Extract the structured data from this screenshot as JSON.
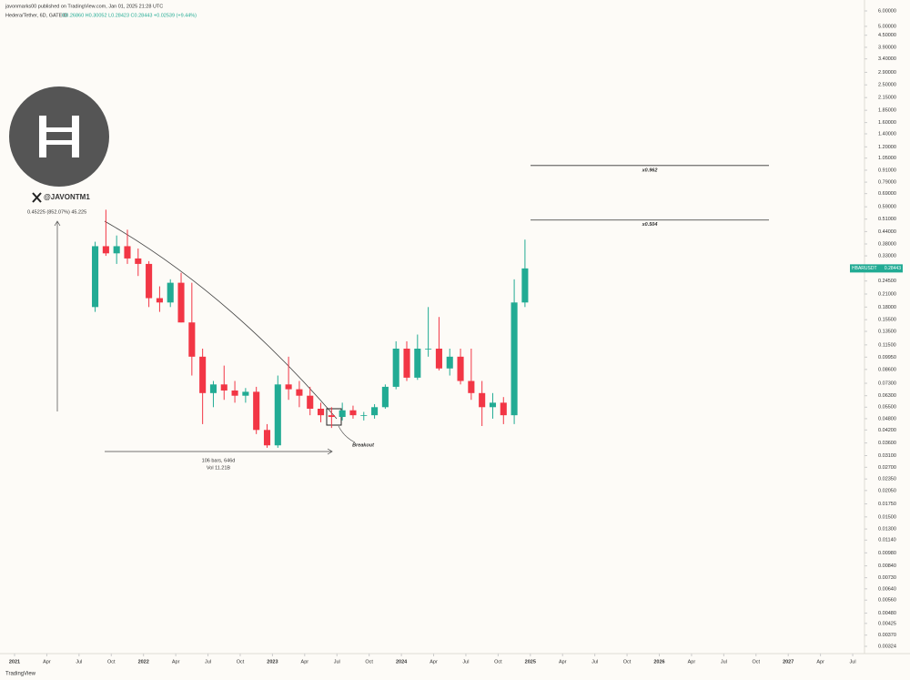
{
  "chart_data": {
    "type": "candlestick",
    "header": "javonmarks00 published on TradingView.com, Jan 01, 2025 21:28 UTC",
    "title": "Hedera/Tether, 6D, GATEIO",
    "ohlc_text": "O0.26860 H0.30052 L0.28423 C0.28443 +0.02539 (+9.44%)",
    "handle": "@JAVONTM1",
    "measure_label": "0.45225 (852.07%) 45.225",
    "range_label": "106 bars, 646d",
    "volume_label": "Vol 11.21B",
    "breakout_label": "Breakout",
    "footer": "TradingView",
    "price_tag": {
      "symbol": "HBARUSDT",
      "price": 0.28443
    },
    "levels": [
      {
        "value": 0.962,
        "label": "x0.962"
      },
      {
        "value": 0.504,
        "label": "x0.504"
      }
    ],
    "log_scale": true,
    "up_color": "#22ab94",
    "down_color": "#f23645",
    "x": [
      "2021-08",
      "2021-09",
      "2021-10",
      "2021-11",
      "2021-12",
      "2022-01",
      "2022-02",
      "2022-03",
      "2022-04",
      "2022-05",
      "2022-06",
      "2022-07",
      "2022-08",
      "2022-09",
      "2022-10",
      "2022-11",
      "2022-12",
      "2023-01",
      "2023-02",
      "2023-03",
      "2023-04",
      "2023-05",
      "2023-06",
      "2023-07",
      "2023-08",
      "2023-09",
      "2023-10",
      "2023-11",
      "2023-12",
      "2024-01",
      "2024-02",
      "2024-03",
      "2024-04",
      "2024-05",
      "2024-06",
      "2024-07",
      "2024-08",
      "2024-09",
      "2024-10",
      "2024-11",
      "2024-12"
    ],
    "open": [
      0.18,
      0.37,
      0.34,
      0.37,
      0.32,
      0.3,
      0.2,
      0.19,
      0.24,
      0.15,
      0.1,
      0.065,
      0.072,
      0.067,
      0.063,
      0.066,
      0.042,
      0.035,
      0.072,
      0.068,
      0.063,
      0.054,
      0.05,
      0.049,
      0.053,
      0.05,
      0.05,
      0.055,
      0.07,
      0.11,
      0.078,
      0.11,
      0.11,
      0.087,
      0.1,
      0.075,
      0.065,
      0.055,
      0.058,
      0.05,
      0.19
    ],
    "high": [
      0.39,
      0.57,
      0.42,
      0.45,
      0.36,
      0.31,
      0.23,
      0.25,
      0.27,
      0.24,
      0.11,
      0.075,
      0.09,
      0.075,
      0.069,
      0.07,
      0.045,
      0.08,
      0.1,
      0.075,
      0.07,
      0.058,
      0.055,
      0.058,
      0.056,
      0.052,
      0.057,
      0.072,
      0.12,
      0.12,
      0.13,
      0.18,
      0.16,
      0.11,
      0.11,
      0.11,
      0.075,
      0.065,
      0.062,
      0.25,
      0.4
    ],
    "low": [
      0.17,
      0.33,
      0.3,
      0.3,
      0.26,
      0.18,
      0.17,
      0.18,
      0.15,
      0.08,
      0.045,
      0.055,
      0.06,
      0.058,
      0.058,
      0.04,
      0.034,
      0.034,
      0.06,
      0.055,
      0.05,
      0.046,
      0.043,
      0.047,
      0.048,
      0.047,
      0.048,
      0.054,
      0.068,
      0.075,
      0.076,
      0.1,
      0.085,
      0.08,
      0.072,
      0.06,
      0.044,
      0.048,
      0.045,
      0.045,
      0.18
    ],
    "close": [
      0.37,
      0.34,
      0.37,
      0.32,
      0.3,
      0.2,
      0.19,
      0.24,
      0.15,
      0.1,
      0.065,
      0.072,
      0.067,
      0.063,
      0.066,
      0.042,
      0.035,
      0.072,
      0.068,
      0.063,
      0.054,
      0.05,
      0.049,
      0.053,
      0.05,
      0.05,
      0.055,
      0.07,
      0.11,
      0.078,
      0.11,
      0.11,
      0.087,
      0.1,
      0.075,
      0.065,
      0.055,
      0.058,
      0.05,
      0.19,
      0.28443
    ],
    "xlim": [
      "2021-01",
      "2027-09"
    ],
    "xticks": [
      {
        "value": "2021-01",
        "label": "2021"
      },
      {
        "value": "2021-04",
        "label": "Apr"
      },
      {
        "value": "2021-07",
        "label": "Jul"
      },
      {
        "value": "2021-10",
        "label": "Oct"
      },
      {
        "value": "2022-01",
        "label": "2022"
      },
      {
        "value": "2022-04",
        "label": "Apr"
      },
      {
        "value": "2022-07",
        "label": "Jul"
      },
      {
        "value": "2022-10",
        "label": "Oct"
      },
      {
        "value": "2023-01",
        "label": "2023"
      },
      {
        "value": "2023-04",
        "label": "Apr"
      },
      {
        "value": "2023-07",
        "label": "Jul"
      },
      {
        "value": "2023-10",
        "label": "Oct"
      },
      {
        "value": "2024-01",
        "label": "2024"
      },
      {
        "value": "2024-04",
        "label": "Apr"
      },
      {
        "value": "2024-07",
        "label": "Jul"
      },
      {
        "value": "2024-10",
        "label": "Oct"
      },
      {
        "value": "2025-01",
        "label": "2025"
      },
      {
        "value": "2025-04",
        "label": "Apr"
      },
      {
        "value": "2025-07",
        "label": "Jul"
      },
      {
        "value": "2025-10",
        "label": "Oct"
      },
      {
        "value": "2026-01",
        "label": "2026"
      },
      {
        "value": "2026-04",
        "label": "Apr"
      },
      {
        "value": "2026-07",
        "label": "Jul"
      },
      {
        "value": "2026-10",
        "label": "Oct"
      },
      {
        "value": "2027-01",
        "label": "2027"
      },
      {
        "value": "2027-04",
        "label": "Apr"
      },
      {
        "value": "2027-07",
        "label": "Jul"
      }
    ],
    "ylim": [
      0.00324,
      6
    ],
    "yticks": [
      {
        "value": 6,
        "label": "6.00000"
      },
      {
        "value": 5,
        "label": "5.00000"
      },
      {
        "value": 4.5,
        "label": "4.50000"
      },
      {
        "value": 3.9,
        "label": "3.90000"
      },
      {
        "value": 3.4,
        "label": "3.40000"
      },
      {
        "value": 2.9,
        "label": "2.90000"
      },
      {
        "value": 2.5,
        "label": "2.50000"
      },
      {
        "value": 2.15,
        "label": "2.15000"
      },
      {
        "value": 1.85,
        "label": "1.85000"
      },
      {
        "value": 1.6,
        "label": "1.60000"
      },
      {
        "value": 1.4,
        "label": "1.40000"
      },
      {
        "value": 1.2,
        "label": "1.20000"
      },
      {
        "value": 1.05,
        "label": "1.05000"
      },
      {
        "value": 0.91,
        "label": "0.91000"
      },
      {
        "value": 0.79,
        "label": "0.79000"
      },
      {
        "value": 0.69,
        "label": "0.69000"
      },
      {
        "value": 0.59,
        "label": "0.59000"
      },
      {
        "value": 0.51,
        "label": "0.51000"
      },
      {
        "value": 0.44,
        "label": "0.44000"
      },
      {
        "value": 0.38,
        "label": "0.38000"
      },
      {
        "value": 0.33,
        "label": "0.33000"
      },
      {
        "value": 0.245,
        "label": "0.24500"
      },
      {
        "value": 0.21,
        "label": "0.21000"
      },
      {
        "value": 0.18,
        "label": "0.18000"
      },
      {
        "value": 0.155,
        "label": "0.15500"
      },
      {
        "value": 0.135,
        "label": "0.13500"
      },
      {
        "value": 0.115,
        "label": "0.11500"
      },
      {
        "value": 0.0995,
        "label": "0.09950"
      },
      {
        "value": 0.086,
        "label": "0.08600"
      },
      {
        "value": 0.073,
        "label": "0.07300"
      },
      {
        "value": 0.063,
        "label": "0.06300"
      },
      {
        "value": 0.055,
        "label": "0.05500"
      },
      {
        "value": 0.048,
        "label": "0.04800"
      },
      {
        "value": 0.042,
        "label": "0.04200"
      },
      {
        "value": 0.036,
        "label": "0.03600"
      },
      {
        "value": 0.031,
        "label": "0.03100"
      },
      {
        "value": 0.027,
        "label": "0.02700"
      },
      {
        "value": 0.0235,
        "label": "0.02350"
      },
      {
        "value": 0.0205,
        "label": "0.02050"
      },
      {
        "value": 0.0175,
        "label": "0.01750"
      },
      {
        "value": 0.015,
        "label": "0.01500"
      },
      {
        "value": 0.013,
        "label": "0.01300"
      },
      {
        "value": 0.0114,
        "label": "0.01140"
      },
      {
        "value": 0.0098,
        "label": "0.00980"
      },
      {
        "value": 0.0084,
        "label": "0.00840"
      },
      {
        "value": 0.0073,
        "label": "0.00730"
      },
      {
        "value": 0.0064,
        "label": "0.00640"
      },
      {
        "value": 0.0056,
        "label": "0.00560"
      },
      {
        "value": 0.0048,
        "label": "0.00480"
      },
      {
        "value": 0.00425,
        "label": "0.00425"
      },
      {
        "value": 0.0037,
        "label": "0.00370"
      },
      {
        "value": 0.00324,
        "label": "0.00324"
      }
    ]
  }
}
